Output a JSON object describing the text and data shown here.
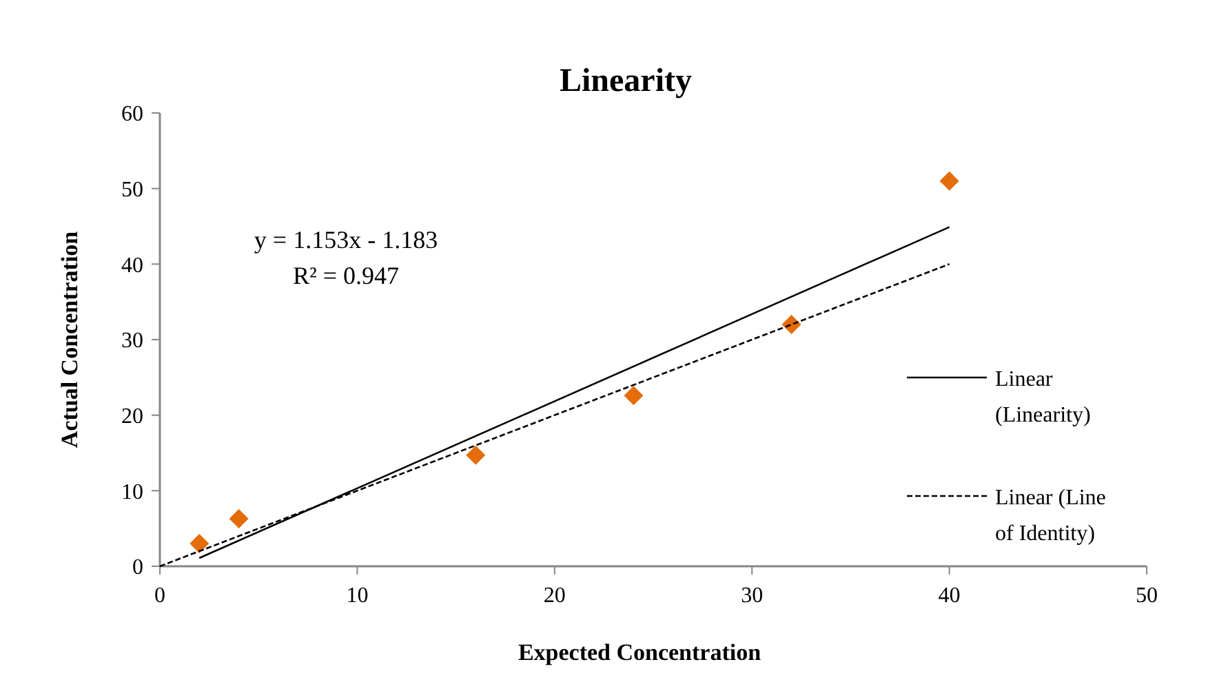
{
  "chart_data": {
    "type": "scatter",
    "title": "Linearity",
    "xlabel": "Expected Concentration",
    "ylabel": "Actual Concentration",
    "series": [
      {
        "color": "#e46c0a",
        "x": [
          2,
          4,
          16,
          24,
          32,
          40
        ],
        "values": [
          3,
          6.3,
          14.7,
          22.6,
          32,
          51
        ],
        "marker": "diamond"
      },
      {
        "type": "line",
        "name": "Linear (Linearity)",
        "color": "#000000",
        "x": [
          2,
          40
        ],
        "values": [
          1.1,
          44.9
        ],
        "line_style": "solid"
      },
      {
        "type": "line",
        "name": "Linear (Line of Identity)",
        "color": "#000000",
        "x": [
          0,
          40
        ],
        "values": [
          0,
          40
        ],
        "line_style": "dashed"
      }
    ],
    "annotations": [
      "y = 1.153x - 1.183",
      "R² = 0.947"
    ],
    "xlim": [
      0,
      50
    ],
    "xticks": [
      0,
      10,
      20,
      30,
      40,
      50
    ],
    "ylim": [
      0,
      60
    ],
    "yticks": [
      0,
      10,
      20,
      30,
      40,
      50,
      60
    ],
    "grid": false,
    "legend": "right"
  }
}
